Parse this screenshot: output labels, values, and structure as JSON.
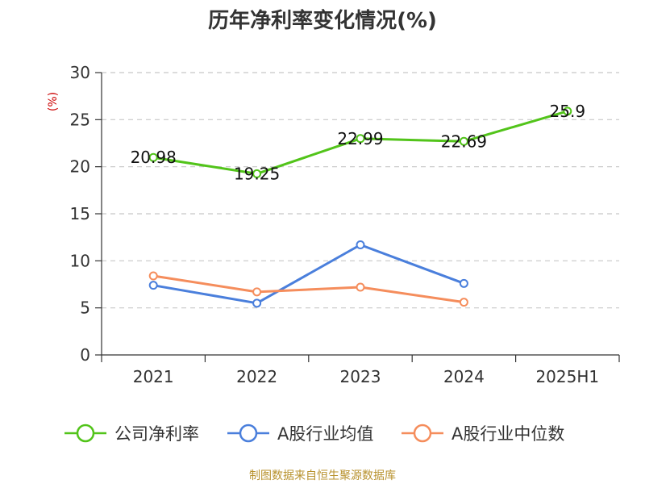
{
  "chart_data": {
    "type": "line",
    "title": "历年净利率变化情况(%)",
    "ylabel": "(%)",
    "xlabel": "",
    "categories": [
      "2021",
      "2022",
      "2023",
      "2024",
      "2025H1"
    ],
    "ylim": [
      0,
      30
    ],
    "yticks": [
      0,
      5,
      10,
      15,
      20,
      25,
      30
    ],
    "grid": true,
    "legend_position": "bottom",
    "series": [
      {
        "name": "公司净利率",
        "color": "#52c41a",
        "values": [
          20.98,
          19.25,
          22.99,
          22.69,
          25.9
        ],
        "labels": [
          "20.98",
          "19.25",
          "22.99",
          "22.69",
          "25.9"
        ]
      },
      {
        "name": "A股行业均值",
        "color": "#4a7fdc",
        "values": [
          7.4,
          5.5,
          11.7,
          7.6,
          null
        ]
      },
      {
        "name": "A股行业中位数",
        "color": "#f58d5c",
        "values": [
          8.4,
          6.7,
          7.2,
          5.6,
          null
        ]
      }
    ]
  },
  "source": "制图数据来自恒生聚源数据库"
}
